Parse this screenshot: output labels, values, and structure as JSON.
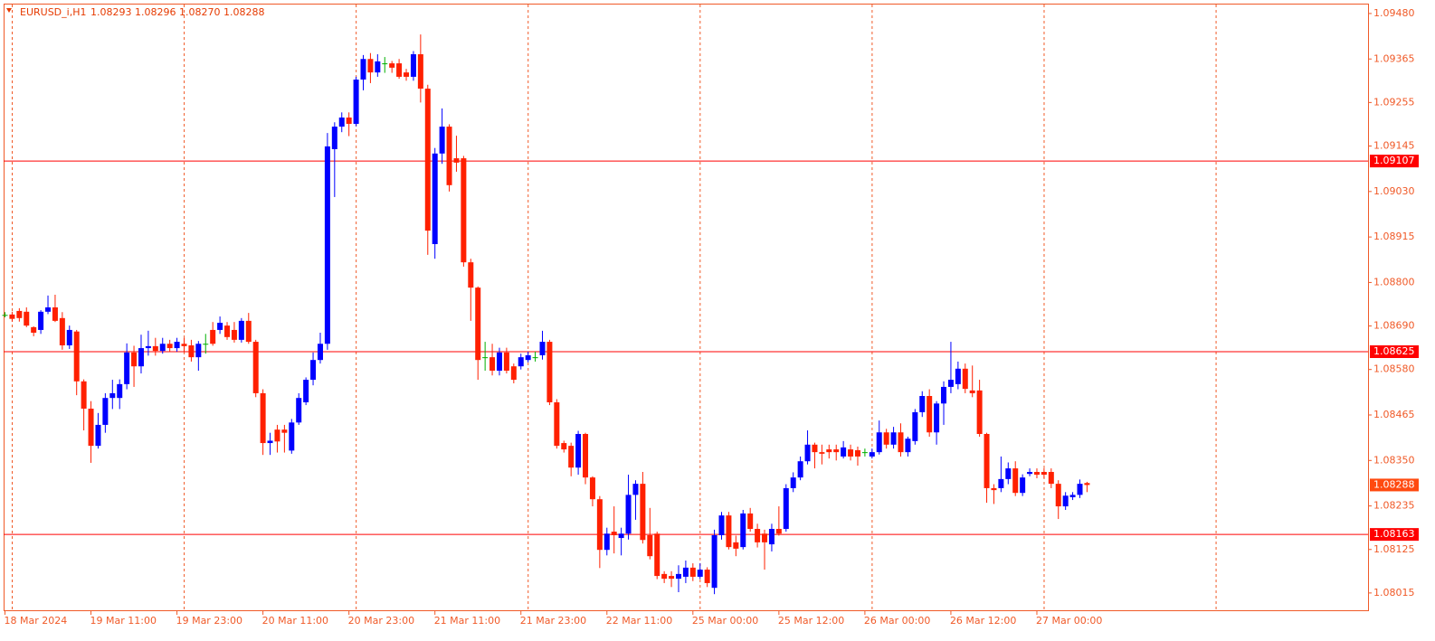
{
  "chart_data": {
    "type": "candlestick",
    "title": "EURUSD_i,H1",
    "subtitle": "1.08293 1.08296 1.08270 1.08288",
    "categories": [
      "18 Mar 2024",
      null,
      null,
      null,
      null,
      null,
      null,
      null,
      null,
      null,
      null,
      null,
      "19 Mar 11:00",
      null,
      null,
      null,
      null,
      null,
      null,
      null,
      null,
      null,
      null,
      null,
      "19 Mar 23:00",
      null,
      null,
      null,
      null,
      null,
      null,
      null,
      null,
      null,
      null,
      null,
      "20 Mar 11:00",
      null,
      null,
      null,
      null,
      null,
      null,
      null,
      null,
      null,
      null,
      null,
      "20 Mar 23:00",
      null,
      null,
      null,
      null,
      null,
      null,
      null,
      null,
      null,
      null,
      null,
      "21 Mar 11:00",
      null,
      null,
      null,
      null,
      null,
      null,
      null,
      null,
      null,
      null,
      null,
      "21 Mar 23:00",
      null,
      null,
      null,
      null,
      null,
      null,
      null,
      null,
      null,
      null,
      null,
      "22 Mar 11:00",
      null,
      null,
      null,
      null,
      null,
      null,
      null,
      null,
      null,
      null,
      null,
      "25 Mar 00:00",
      null,
      null,
      null,
      null,
      null,
      null,
      null,
      null,
      null,
      null,
      null,
      "25 Mar 12:00",
      null,
      null,
      null,
      null,
      null,
      null,
      null,
      null,
      null,
      null,
      null,
      "26 Mar 00:00",
      null,
      null,
      null,
      null,
      null,
      null,
      null,
      null,
      null,
      null,
      null,
      "26 Mar 12:00",
      null,
      null,
      null,
      null,
      null,
      null,
      null,
      null,
      null,
      null,
      null,
      "27 Mar 00:00",
      null,
      null,
      null,
      null,
      null,
      null,
      null
    ],
    "open": [
      1.08718,
      1.08719,
      1.08728,
      1.08726,
      1.08687,
      1.0868,
      1.08726,
      1.08737,
      1.0871,
      1.08641,
      1.08676,
      1.0855,
      1.08481,
      1.08387,
      1.0844,
      1.08508,
      1.08508,
      1.08543,
      1.08623,
      1.08588,
      1.08634,
      1.08639,
      1.08627,
      1.08645,
      1.08634,
      1.08645,
      1.08641,
      1.08611,
      1.08645,
      1.0868,
      1.0868,
      1.08691,
      1.0868,
      1.08655,
      1.08703,
      1.0865,
      1.0852,
      1.08394,
      1.08428,
      1.08428,
      1.08375,
      1.08446,
      1.08497,
      1.08554,
      1.08604,
      1.08645,
      1.09137,
      1.09194,
      1.09217,
      1.09201,
      1.09313,
      1.09365,
      1.09331,
      1.09354,
      1.09354,
      1.09354,
      1.09331,
      1.0932,
      1.09377,
      1.0929,
      1.08897,
      1.09126,
      1.09194,
      1.09114,
      1.09114,
      1.08851,
      1.08787,
      1.08611,
      1.08611,
      1.08577,
      1.08623,
      1.08588,
      1.08588,
      1.08604,
      1.08611,
      1.08616,
      1.0865,
      1.08497,
      1.08394,
      1.08387,
      1.08332,
      1.08417,
      1.08307,
      1.08252,
      1.08124,
      1.0817,
      1.08154,
      1.08165,
      1.08263,
      1.08291,
      1.08161,
      1.08165,
      1.08063,
      1.08058,
      1.08051,
      1.08056,
      1.08079,
      1.08056,
      1.08074,
      1.08028,
      1.08161,
      1.08211,
      1.08143,
      1.08131,
      1.08216,
      1.08177,
      1.08165,
      1.08138,
      1.08177,
      1.08177,
      1.0828,
      1.08307,
      1.08348,
      1.0839,
      1.08371,
      1.08378,
      1.08378,
      1.0836,
      1.08378,
      1.08376,
      1.08371,
      1.0836,
      1.08371,
      1.08421,
      1.0839,
      1.08421,
      1.08371,
      1.08399,
      1.08472,
      1.08513,
      1.08421,
      1.08494,
      1.08536,
      1.08543,
      1.08582,
      1.08527,
      1.08527,
      1.08417,
      1.0828,
      1.0828,
      1.08303,
      1.0833,
      1.08268,
      1.08316,
      1.08321,
      1.08321,
      1.08321,
      1.08291,
      1.08234,
      1.08257,
      1.08263,
      1.08293
    ],
    "high": [
      1.08725,
      1.08726,
      1.08735,
      1.08737,
      1.08689,
      1.0873,
      1.08767,
      1.08769,
      1.08725,
      1.08691,
      1.0868,
      1.08555,
      1.085,
      1.0847,
      1.0852,
      1.08554,
      1.08555,
      1.08646,
      1.0864,
      1.08668,
      1.08678,
      1.0866,
      1.0866,
      1.08655,
      1.0866,
      1.0866,
      1.08655,
      1.08652,
      1.0867,
      1.087,
      1.08714,
      1.087,
      1.087,
      1.0871,
      1.08723,
      1.08655,
      1.0853,
      1.0842,
      1.0844,
      1.0844,
      1.08455,
      1.0852,
      1.0856,
      1.08623,
      1.08673,
      1.09178,
      1.09205,
      1.0923,
      1.0923,
      1.0932,
      1.09375,
      1.0938,
      1.09377,
      1.0937,
      1.0936,
      1.09365,
      1.0934,
      1.09385,
      1.09427,
      1.093,
      1.0914,
      1.0924,
      1.092,
      1.09171,
      1.0912,
      1.0886,
      1.0879,
      1.0865,
      1.08645,
      1.08635,
      1.08635,
      1.08595,
      1.0862,
      1.08625,
      1.08625,
      1.08678,
      1.08655,
      1.08505,
      1.084,
      1.08395,
      1.08425,
      1.0842,
      1.0831,
      1.0826,
      1.0818,
      1.08234,
      1.0818,
      1.08314,
      1.083,
      1.08321,
      1.0823,
      1.0817,
      1.0807,
      1.0807,
      1.08085,
      1.08097,
      1.0809,
      1.0809,
      1.0808,
      1.08175,
      1.0822,
      1.0822,
      1.0816,
      1.08225,
      1.0823,
      1.0819,
      1.08175,
      1.0819,
      1.08234,
      1.0829,
      1.0832,
      1.0836,
      1.08426,
      1.08395,
      1.0839,
      1.0839,
      1.0839,
      1.08399,
      1.0839,
      1.08385,
      1.0838,
      1.0838,
      1.08451,
      1.0843,
      1.08435,
      1.08444,
      1.0841,
      1.0848,
      1.08525,
      1.0853,
      1.085,
      1.0855,
      1.0865,
      1.086,
      1.08595,
      1.0859,
      1.08554,
      1.0842,
      1.0829,
      1.0836,
      1.08345,
      1.08348,
      1.08315,
      1.0833,
      1.0833,
      1.0833,
      1.0833,
      1.083,
      1.0827,
      1.0827,
      1.08302,
      1.08296
    ],
    "low": [
      1.08712,
      1.08701,
      1.08701,
      1.08687,
      1.08664,
      1.0867,
      1.0872,
      1.087,
      1.0863,
      1.08632,
      1.08515,
      1.08426,
      1.08344,
      1.0838,
      1.0842,
      1.0848,
      1.0848,
      1.0853,
      1.08536,
      1.0857,
      1.08615,
      1.08615,
      1.0862,
      1.08625,
      1.08625,
      1.08625,
      1.086,
      1.08577,
      1.0862,
      1.0864,
      1.0867,
      1.08655,
      1.08648,
      1.08648,
      1.08645,
      1.0851,
      1.08364,
      1.08364,
      1.0837,
      1.0837,
      1.08367,
      1.0844,
      1.0849,
      1.0854,
      1.08595,
      1.0863,
      1.09016,
      1.0918,
      1.0917,
      1.09195,
      1.09286,
      1.09304,
      1.0932,
      1.0933,
      1.0933,
      1.09315,
      1.0931,
      1.0931,
      1.09255,
      1.0887,
      1.0886,
      1.091,
      1.0903,
      1.0908,
      1.0884,
      1.08703,
      1.08554,
      1.08577,
      1.08565,
      1.08565,
      1.0857,
      1.08545,
      1.0858,
      1.08598,
      1.086,
      1.08605,
      1.0849,
      1.0838,
      1.0837,
      1.0831,
      1.08314,
      1.0829,
      1.08234,
      1.08078,
      1.0811,
      1.08115,
      1.0811,
      1.0815,
      1.082,
      1.0814,
      1.081,
      1.0805,
      1.0804,
      1.0803,
      1.08017,
      1.0804,
      1.08045,
      1.0805,
      1.0803,
      1.08012,
      1.0815,
      1.08125,
      1.08108,
      1.08125,
      1.0817,
      1.0813,
      1.08074,
      1.0812,
      1.0816,
      1.0817,
      1.0827,
      1.083,
      1.0834,
      1.0833,
      1.0834,
      1.08355,
      1.0835,
      1.08355,
      1.0835,
      1.08337,
      1.0836,
      1.08355,
      1.08365,
      1.0838,
      1.0838,
      1.0836,
      1.0836,
      1.0839,
      1.0846,
      1.0841,
      1.0839,
      1.0844,
      1.0852,
      1.0853,
      1.0852,
      1.0851,
      1.0841,
      1.08243,
      1.0824,
      1.0827,
      1.0829,
      1.0826,
      1.0826,
      1.0831,
      1.08305,
      1.08305,
      1.0828,
      1.08202,
      1.08225,
      1.0825,
      1.08255,
      1.0827
    ],
    "close": [
      1.08718,
      1.08708,
      1.0871,
      1.08691,
      1.08673,
      1.08726,
      1.08737,
      1.08703,
      1.08641,
      1.0868,
      1.0855,
      1.08481,
      1.08387,
      1.0844,
      1.08508,
      1.0852,
      1.08543,
      1.08623,
      1.08588,
      1.08634,
      1.08639,
      1.08627,
      1.08645,
      1.08634,
      1.0865,
      1.08639,
      1.08611,
      1.08645,
      1.08645,
      1.08645,
      1.08698,
      1.08662,
      1.08655,
      1.08703,
      1.0865,
      1.0852,
      1.08394,
      1.084,
      1.08398,
      1.0842,
      1.08446,
      1.08508,
      1.08554,
      1.08604,
      1.08645,
      1.09144,
      1.09194,
      1.09217,
      1.09201,
      1.09313,
      1.09365,
      1.09331,
      1.09359,
      1.09354,
      1.09343,
      1.0932,
      1.0932,
      1.09377,
      1.0929,
      1.08931,
      1.09126,
      1.09194,
      1.09046,
      1.09103,
      1.08851,
      1.08787,
      1.08604,
      1.08611,
      1.08577,
      1.08623,
      1.08577,
      1.08554,
      1.08611,
      1.08616,
      1.08611,
      1.0865,
      1.08497,
      1.08387,
      1.08378,
      1.08332,
      1.08417,
      1.08307,
      1.08252,
      1.08124,
      1.08165,
      1.08161,
      1.08165,
      1.08263,
      1.08291,
      1.08149,
      1.08108,
      1.08058,
      1.08051,
      1.08051,
      1.08063,
      1.08079,
      1.08056,
      1.08074,
      1.0804,
      1.08161,
      1.08211,
      1.08131,
      1.08127,
      1.08216,
      1.08177,
      1.08143,
      1.08143,
      1.08177,
      1.08165,
      1.0828,
      1.08307,
      1.08348,
      1.0839,
      1.08371,
      1.08367,
      1.08371,
      1.08371,
      1.08383,
      1.0836,
      1.0836,
      1.08371,
      1.08371,
      1.08421,
      1.0839,
      1.08421,
      1.08371,
      1.08405,
      1.08472,
      1.08513,
      1.08421,
      1.08494,
      1.08536,
      1.08554,
      1.08582,
      1.08531,
      1.0852,
      1.08417,
      1.0828,
      1.08275,
      1.08303,
      1.0833,
      1.08268,
      1.08307,
      1.08321,
      1.08314,
      1.08314,
      1.08291,
      1.08234,
      1.08261,
      1.08263,
      1.08291,
      1.08288
    ],
    "up_color": "#0000ff",
    "down_color": "#ff2000",
    "doji_color": "#00b000",
    "levels": [
      1.09107,
      1.08625,
      1.08163
    ],
    "level_color": "#ff0000",
    "last_price_color": "#ff4a10",
    "ylim": [
      1.07969,
      1.09505
    ],
    "yticks": [
      {
        "value": 1.0948,
        "label": "1.09480"
      },
      1.09365,
      1.09255,
      1.09145,
      {
        "value": 1.0903,
        "label": "1.09030"
      },
      1.08915,
      {
        "value": 1.088,
        "label": "1.08800"
      },
      {
        "value": 1.0869,
        "label": "1.08690"
      },
      {
        "value": 1.0858,
        "label": "1.08580"
      },
      1.08465,
      {
        "value": 1.0835,
        "label": "1.08350"
      },
      1.08235,
      1.08125,
      1.08015
    ],
    "grid": true
  }
}
